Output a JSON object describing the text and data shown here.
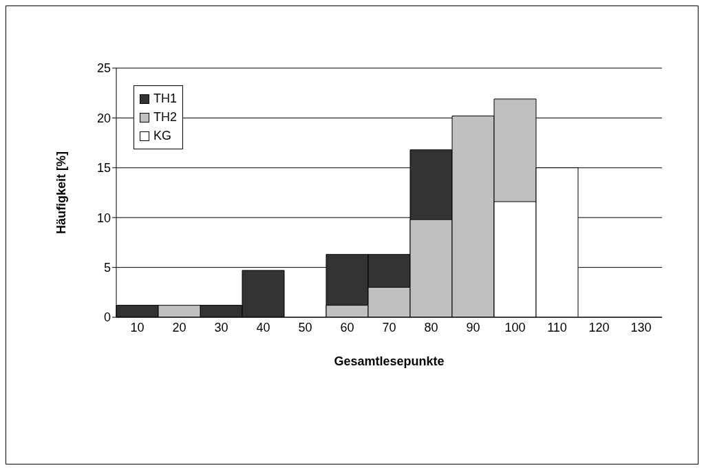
{
  "chart_data": {
    "type": "bar",
    "xlabel": "Gesamtlesepunkte",
    "ylabel": "Häufigkeit [%]",
    "categories": [
      "10",
      "20",
      "30",
      "40",
      "50",
      "60",
      "70",
      "80",
      "90",
      "100",
      "110",
      "120",
      "130"
    ],
    "series": [
      {
        "name": "TH1",
        "color": "#333333",
        "values": [
          1.2,
          null,
          1.2,
          4.7,
          null,
          6.3,
          6.3,
          16.8,
          null,
          null,
          null,
          null,
          null
        ]
      },
      {
        "name": "TH2",
        "color": "#c0c0c0",
        "values": [
          null,
          1.2,
          null,
          null,
          null,
          1.2,
          3.0,
          9.8,
          20.2,
          21.9,
          null,
          null,
          null
        ]
      },
      {
        "name": "KG",
        "color": "#ffffff",
        "values": [
          null,
          null,
          null,
          null,
          null,
          null,
          null,
          null,
          null,
          11.6,
          15.0,
          null,
          null
        ]
      }
    ],
    "ylim": [
      0,
      25
    ],
    "yticks": [
      0,
      5,
      10,
      15,
      20,
      25
    ],
    "grid": "y",
    "legend": "top left"
  }
}
